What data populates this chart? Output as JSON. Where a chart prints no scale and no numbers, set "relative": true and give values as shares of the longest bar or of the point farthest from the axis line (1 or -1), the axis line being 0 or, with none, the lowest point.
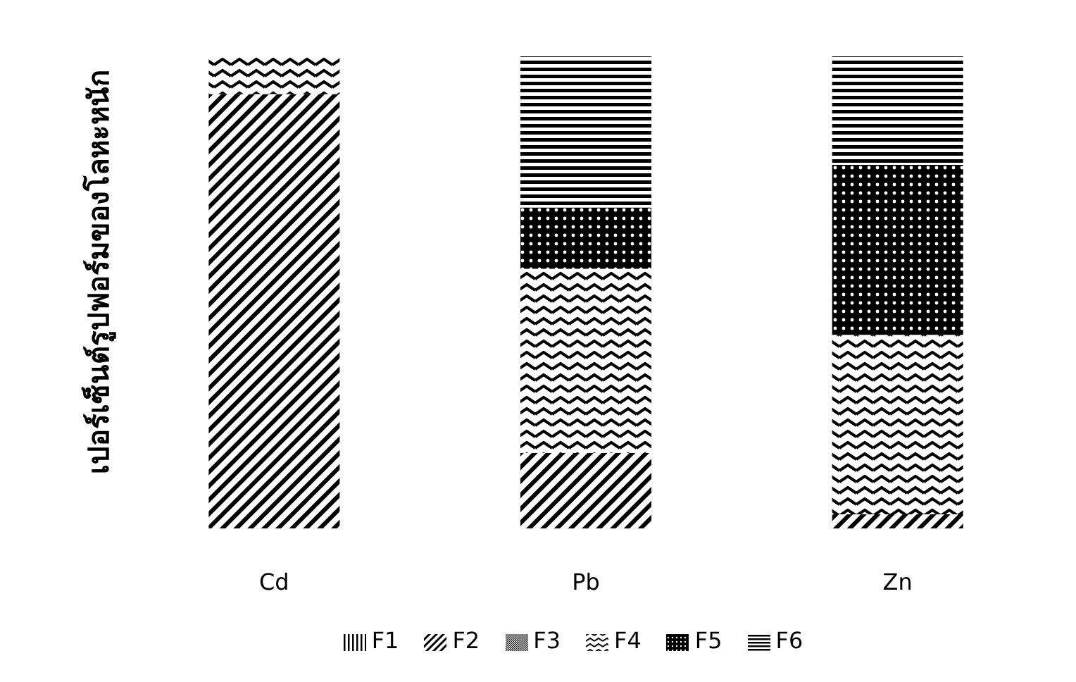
{
  "chart_data": {
    "type": "bar",
    "stacked": true,
    "relative": true,
    "ylabel": "เปอร์เซ็นต์รูปฟอร์มของโลหะหนัก",
    "categories": [
      "Cd",
      "Pb",
      "Zn"
    ],
    "legend": "bottom",
    "series": [
      {
        "name": "F1",
        "color": "#000000",
        "values": [
          0,
          0,
          0
        ]
      },
      {
        "name": "F2",
        "color": "#000000",
        "values": [
          0.92,
          0.16,
          0.03
        ]
      },
      {
        "name": "F3",
        "color": "#000000",
        "values": [
          0,
          0,
          0
        ]
      },
      {
        "name": "F4",
        "color": "#000000",
        "values": [
          0.08,
          0.39,
          0.38
        ]
      },
      {
        "name": "F5",
        "color": "#000000",
        "values": [
          0,
          0.13,
          0.36
        ]
      },
      {
        "name": "F6",
        "color": "#000000",
        "values": [
          0,
          0.32,
          0.23
        ]
      }
    ]
  }
}
